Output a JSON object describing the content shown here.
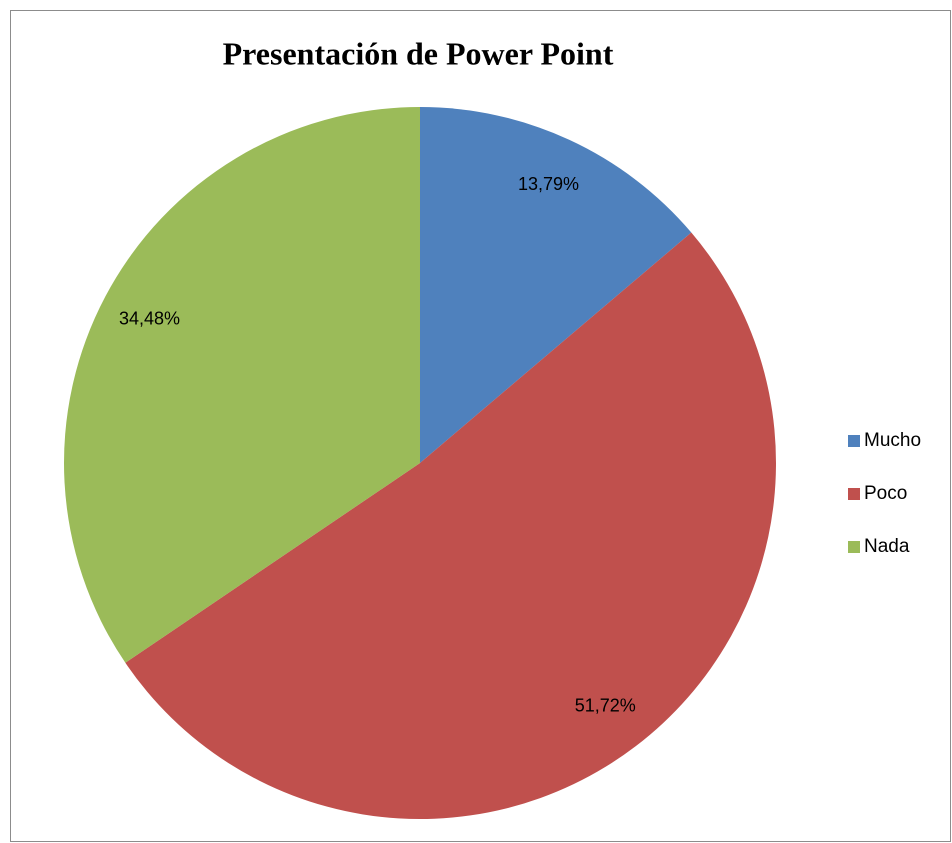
{
  "chart_data": {
    "type": "pie",
    "title": "Presentación de Power Point",
    "categories": [
      "Mucho",
      "Poco",
      "Nada"
    ],
    "values": [
      13.79,
      51.72,
      34.48
    ],
    "value_labels": [
      "13,79%",
      "51,72%",
      "34,48%"
    ],
    "colors": [
      "#4f81bd",
      "#c0504d",
      "#9bbb59"
    ],
    "legend": "right"
  }
}
